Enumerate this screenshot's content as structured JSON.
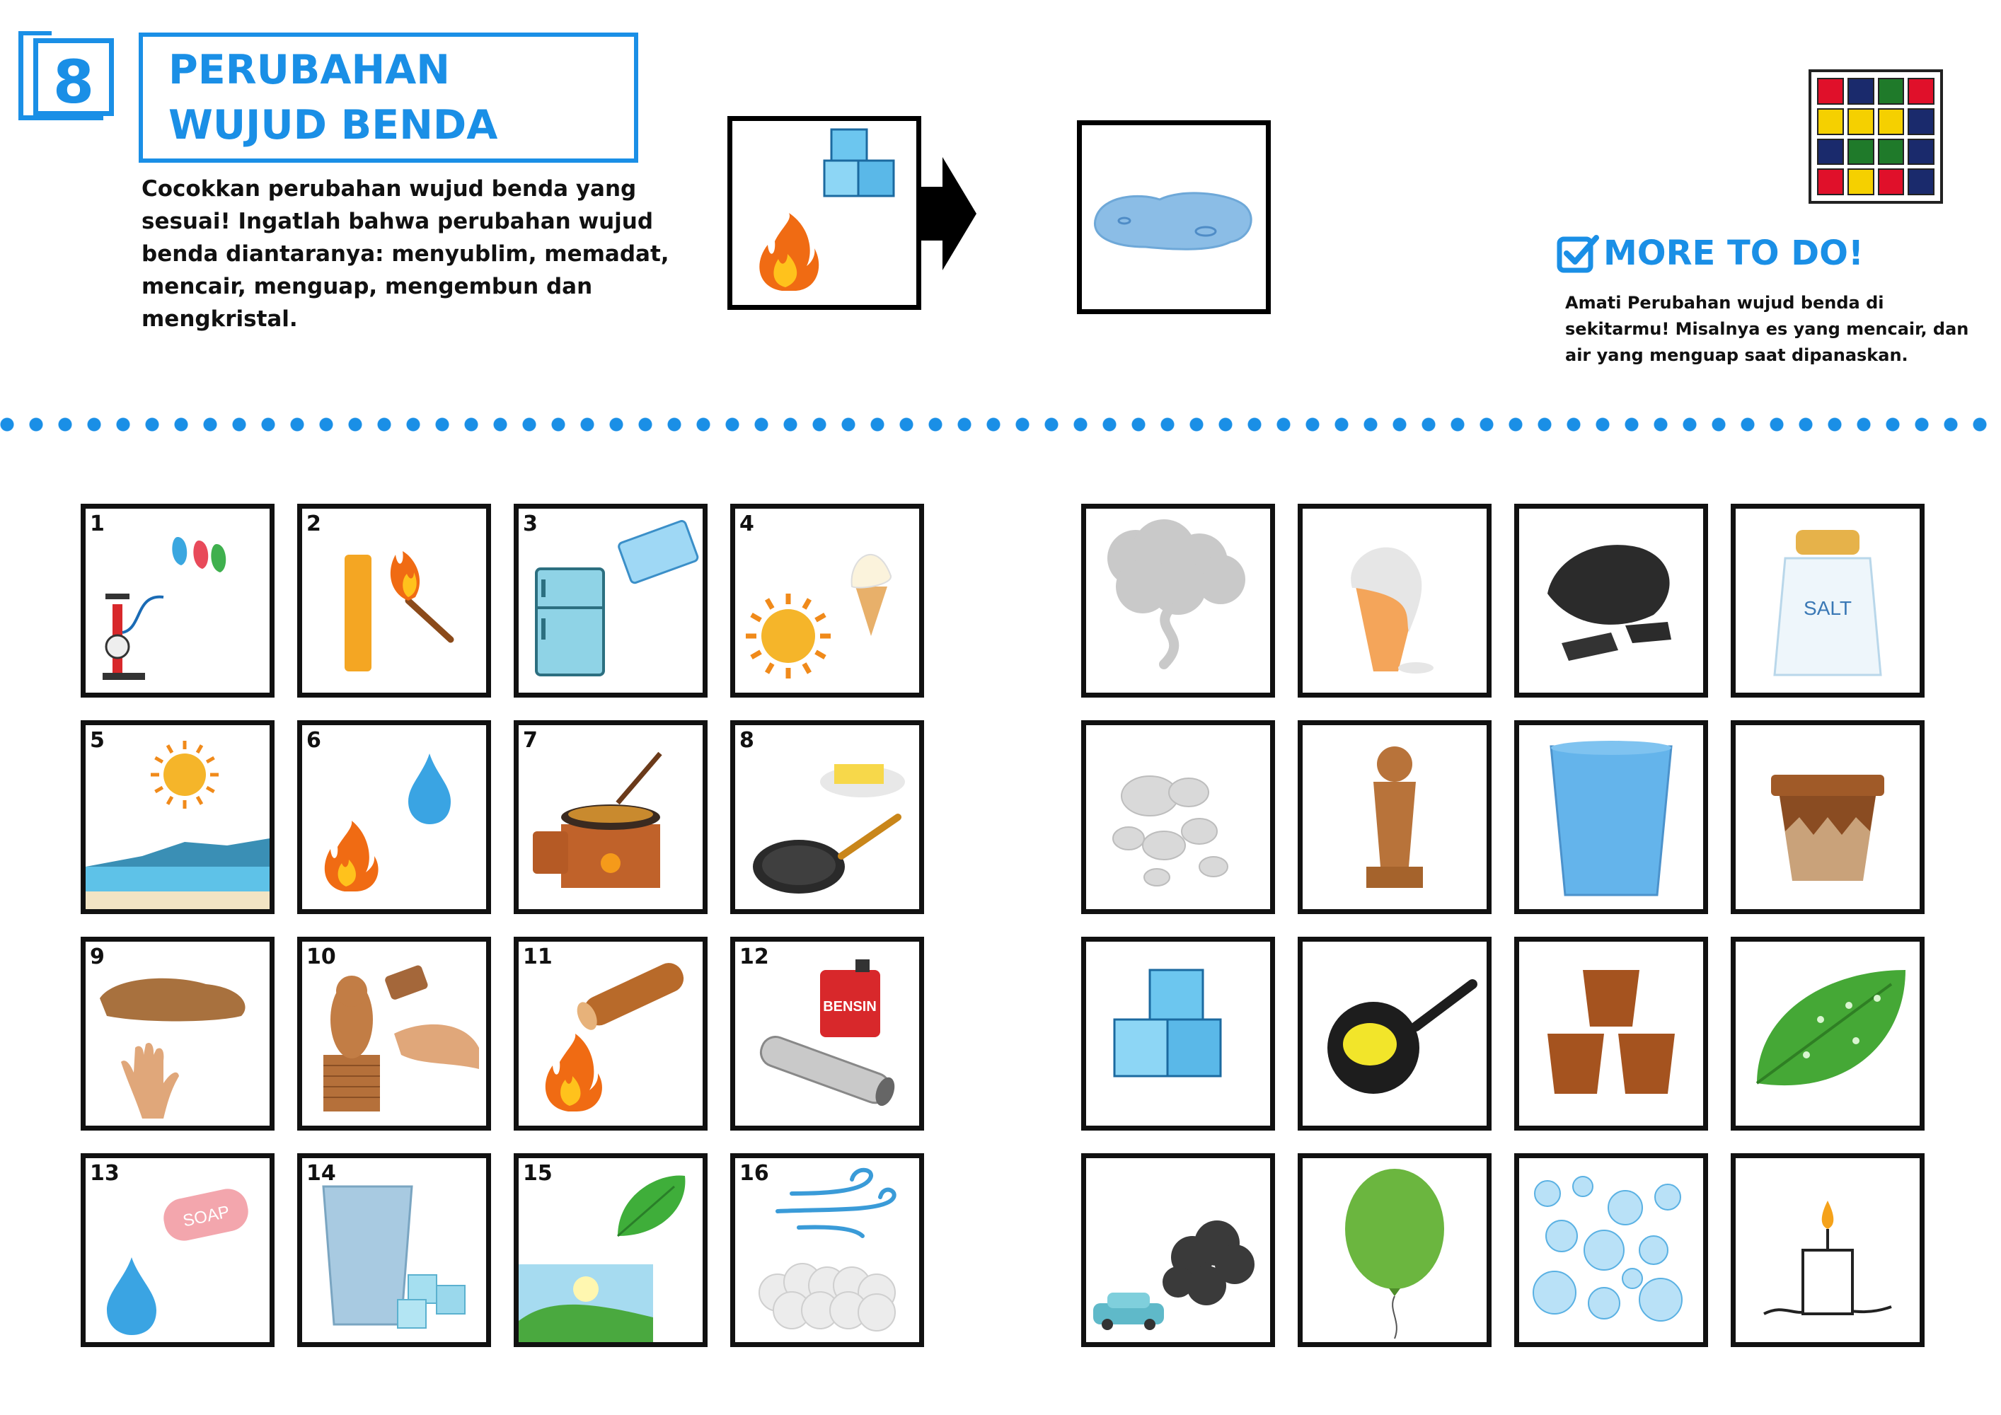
{
  "header": {
    "number": "8",
    "title": "PERUBAHAN WUJUD BENDA",
    "instruction": "Cocokkan perubahan wujud benda yang sesuai! Ingatlah bahwa perubahan wujud benda diantaranya: menyublim, memadat, mencair, menguap, mengembun dan mengkristal."
  },
  "more_to_do": {
    "title": "MORE TO DO!",
    "text": "Amati Perubahan wujud benda di sekitarmu! Misalnya es yang mencair, dan air yang menguap saat dipanaskan."
  },
  "left_cards": [
    {
      "num": "1",
      "icon": "pump-balloons-icon"
    },
    {
      "num": "2",
      "icon": "candle-match-icon"
    },
    {
      "num": "3",
      "icon": "fridge-icetray-icon"
    },
    {
      "num": "4",
      "icon": "sun-icecream-icon"
    },
    {
      "num": "5",
      "icon": "sun-sea-icon"
    },
    {
      "num": "6",
      "icon": "fire-water-drop-icon"
    },
    {
      "num": "7",
      "icon": "stove-wok-icon"
    },
    {
      "num": "8",
      "icon": "butter-pan-icon"
    },
    {
      "num": "9",
      "icon": "mud-hand-icon"
    },
    {
      "num": "10",
      "icon": "wood-carving-icon"
    },
    {
      "num": "11",
      "icon": "log-fire-icon"
    },
    {
      "num": "12",
      "icon": "fuel-exhaust-icon",
      "label": "BENSIN"
    },
    {
      "num": "13",
      "icon": "soap-water-icon",
      "label": "SOAP"
    },
    {
      "num": "14",
      "icon": "glass-sugar-icon"
    },
    {
      "num": "15",
      "icon": "leaf-sunrise-icon"
    },
    {
      "num": "16",
      "icon": "wind-mothballs-icon"
    }
  ],
  "right_cards": [
    {
      "icon": "smoke-icon"
    },
    {
      "icon": "melted-icecream-icon"
    },
    {
      "icon": "charcoal-icon"
    },
    {
      "icon": "salt-shaker-icon",
      "label": "SALT"
    },
    {
      "icon": "small-stones-icon"
    },
    {
      "icon": "wood-statue-icon"
    },
    {
      "icon": "water-glass-icon"
    },
    {
      "icon": "clay-pot-icon"
    },
    {
      "icon": "ice-cubes-icon"
    },
    {
      "icon": "melted-butter-pan-icon"
    },
    {
      "icon": "brown-sugar-icon"
    },
    {
      "icon": "dewy-leaf-icon"
    },
    {
      "icon": "car-exhaust-smoke-icon"
    },
    {
      "icon": "balloon-icon"
    },
    {
      "icon": "soap-bubbles-icon"
    },
    {
      "icon": "melted-candle-icon"
    }
  ],
  "colors": {
    "accent": "#1a8fe6",
    "logo": [
      "#e0102a",
      "#1a2a6c",
      "#1f7a2a",
      "#e0102a",
      "#f5d000",
      "#f5d000",
      "#f5d000",
      "#1a2a6c",
      "#1a2a6c",
      "#1f7a2a",
      "#1f7a2a",
      "#1a2a6c",
      "#e0102a",
      "#f5d000",
      "#e0102a",
      "#1a2a6c"
    ]
  }
}
